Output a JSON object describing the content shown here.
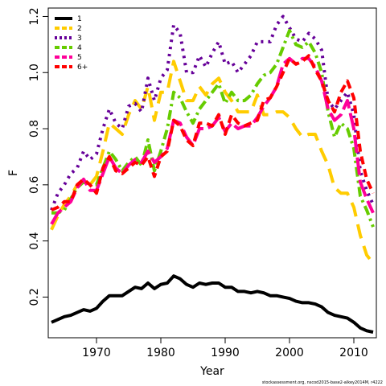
{
  "chart_data": {
    "type": "line",
    "xlabel": "Year",
    "ylabel": "F",
    "xlim": [
      1962.5,
      2013.5
    ],
    "ylim": [
      0.055,
      1.23
    ],
    "xticks": [
      1970,
      1980,
      1990,
      2000,
      2010
    ],
    "yticks": [
      0.2,
      0.4,
      0.6,
      0.8,
      1.0,
      1.2
    ],
    "grid": false,
    "legend_position": "top-left",
    "credit": "stockassessment.org,  nscod2015-base2-alkey2014M, r4222",
    "x": [
      1963,
      1964,
      1965,
      1966,
      1967,
      1968,
      1969,
      1970,
      1971,
      1972,
      1973,
      1974,
      1975,
      1976,
      1977,
      1978,
      1979,
      1980,
      1981,
      1982,
      1983,
      1984,
      1985,
      1986,
      1987,
      1988,
      1989,
      1990,
      1991,
      1992,
      1993,
      1994,
      1995,
      1996,
      1997,
      1998,
      1999,
      2000,
      2001,
      2002,
      2003,
      2004,
      2005,
      2006,
      2007,
      2008,
      2009,
      2010,
      2011,
      2012,
      2013
    ],
    "series": [
      {
        "name": "1",
        "color": "#000000",
        "dash": "solid",
        "values": [
          0.11,
          0.12,
          0.13,
          0.135,
          0.145,
          0.155,
          0.15,
          0.16,
          0.185,
          0.205,
          0.205,
          0.205,
          0.22,
          0.235,
          0.23,
          0.25,
          0.23,
          0.245,
          0.25,
          0.275,
          0.265,
          0.245,
          0.235,
          0.25,
          0.245,
          0.25,
          0.25,
          0.235,
          0.235,
          0.22,
          0.22,
          0.215,
          0.22,
          0.215,
          0.205,
          0.205,
          0.2,
          0.195,
          0.185,
          0.18,
          0.18,
          0.175,
          0.165,
          0.145,
          0.135,
          0.13,
          0.125,
          0.11,
          0.09,
          0.08,
          0.075
        ]
      },
      {
        "name": "2",
        "color": "#FFCC00",
        "dash": "long",
        "values": [
          0.44,
          0.49,
          0.53,
          0.56,
          0.6,
          0.61,
          0.6,
          0.63,
          0.72,
          0.82,
          0.8,
          0.78,
          0.85,
          0.9,
          0.87,
          0.95,
          0.83,
          0.93,
          0.93,
          1.04,
          0.97,
          0.9,
          0.9,
          0.95,
          0.92,
          0.96,
          0.98,
          0.93,
          0.9,
          0.86,
          0.86,
          0.86,
          0.92,
          0.85,
          0.85,
          0.86,
          0.86,
          0.84,
          0.8,
          0.77,
          0.78,
          0.78,
          0.72,
          0.67,
          0.59,
          0.57,
          0.57,
          0.52,
          0.42,
          0.35,
          0.32
        ]
      },
      {
        "name": "3",
        "color": "#660099",
        "dash": "dot",
        "values": [
          0.51,
          0.57,
          0.6,
          0.64,
          0.66,
          0.72,
          0.69,
          0.71,
          0.8,
          0.87,
          0.82,
          0.8,
          0.88,
          0.89,
          0.86,
          0.98,
          0.9,
          0.98,
          1.01,
          1.17,
          1.14,
          1.0,
          1.0,
          1.06,
          1.02,
          1.07,
          1.11,
          1.03,
          1.04,
          1.0,
          1.03,
          1.06,
          1.11,
          1.11,
          1.11,
          1.17,
          1.2,
          1.16,
          1.12,
          1.11,
          1.14,
          1.12,
          1.08,
          0.9,
          0.87,
          0.9,
          0.93,
          0.85,
          0.65,
          0.58,
          0.53
        ]
      },
      {
        "name": "4",
        "color": "#66CC00",
        "dash": "dashdot",
        "values": [
          0.5,
          0.5,
          0.51,
          0.55,
          0.59,
          0.61,
          0.6,
          0.6,
          0.66,
          0.72,
          0.69,
          0.65,
          0.68,
          0.7,
          0.67,
          0.76,
          0.65,
          0.72,
          0.8,
          0.93,
          0.91,
          0.86,
          0.82,
          0.87,
          0.9,
          0.93,
          0.96,
          0.89,
          0.93,
          0.9,
          0.9,
          0.92,
          0.96,
          0.99,
          1.0,
          1.03,
          1.09,
          1.15,
          1.1,
          1.09,
          1.11,
          1.07,
          1.0,
          0.86,
          0.77,
          0.82,
          0.8,
          0.73,
          0.56,
          0.51,
          0.45
        ]
      },
      {
        "name": "5",
        "color": "#FF0099",
        "dash": "longdash",
        "values": [
          0.46,
          0.5,
          0.52,
          0.54,
          0.59,
          0.62,
          0.58,
          0.58,
          0.64,
          0.7,
          0.66,
          0.64,
          0.67,
          0.69,
          0.68,
          0.72,
          0.68,
          0.7,
          0.73,
          0.83,
          0.82,
          0.77,
          0.74,
          0.8,
          0.8,
          0.81,
          0.84,
          0.79,
          0.82,
          0.8,
          0.81,
          0.81,
          0.84,
          0.88,
          0.91,
          0.95,
          1.03,
          1.05,
          1.03,
          1.05,
          1.05,
          1.02,
          0.97,
          0.87,
          0.83,
          0.85,
          0.9,
          0.8,
          0.61,
          0.55,
          0.5
        ]
      },
      {
        "name": "6+",
        "color": "#FF0000",
        "dash": "dash",
        "values": [
          0.51,
          0.52,
          0.54,
          0.54,
          0.6,
          0.62,
          0.6,
          0.57,
          0.66,
          0.7,
          0.65,
          0.64,
          0.66,
          0.68,
          0.67,
          0.7,
          0.63,
          0.7,
          0.72,
          0.83,
          0.81,
          0.76,
          0.74,
          0.82,
          0.82,
          0.81,
          0.85,
          0.78,
          0.85,
          0.82,
          0.81,
          0.82,
          0.83,
          0.9,
          0.91,
          0.95,
          1.0,
          1.05,
          1.03,
          1.04,
          1.06,
          1.01,
          0.97,
          0.9,
          0.86,
          0.93,
          0.97,
          0.91,
          0.72,
          0.62,
          0.57
        ]
      }
    ]
  }
}
